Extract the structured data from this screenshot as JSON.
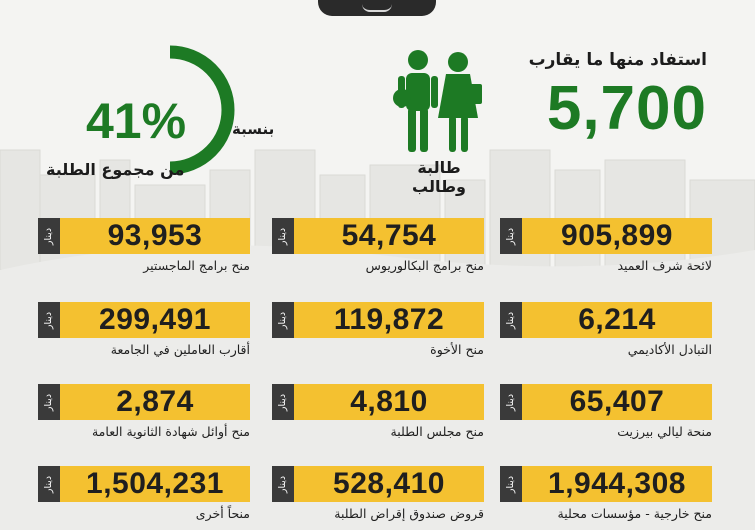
{
  "hero": {
    "intro": "استفاد منها ما يقارب",
    "number": "5,700",
    "students_label": "طالبة وطالب",
    "ratio_prefix": "بنسبة",
    "ratio_value": "41%",
    "ratio_fraction": 0.41,
    "ratio_suffix": "من مجموع الطلبة"
  },
  "colors": {
    "accent_green": "#1d7a24",
    "card_yellow": "#f4c130",
    "unit_dark": "#3a3a3a"
  },
  "unit_label": "دينار",
  "cards": [
    {
      "amount": "905,899",
      "caption": "لائحة شرف العميد"
    },
    {
      "amount": "54,754",
      "caption": "منح برامج البكالوريوس"
    },
    {
      "amount": "93,953",
      "caption": "منح برامج الماجستير"
    },
    {
      "amount": "6,214",
      "caption": "التبادل الأكاديمي"
    },
    {
      "amount": "119,872",
      "caption": "منح الأخوة"
    },
    {
      "amount": "299,491",
      "caption": "أقارب العاملين في الجامعة"
    },
    {
      "amount": "65,407",
      "caption": "منحة ليالي بيرزيت"
    },
    {
      "amount": "4,810",
      "caption": "منح مجلس الطلبة"
    },
    {
      "amount": "2,874",
      "caption": "منح أوائل شهادة الثانوية العامة"
    },
    {
      "amount": "1,944,308",
      "caption": "منح خارجية - مؤسسات محلية"
    },
    {
      "amount": "528,410",
      "caption": "قروض صندوق إقراض الطلبة"
    },
    {
      "amount": "1,504,231",
      "caption": "منحاً أخرى"
    }
  ]
}
